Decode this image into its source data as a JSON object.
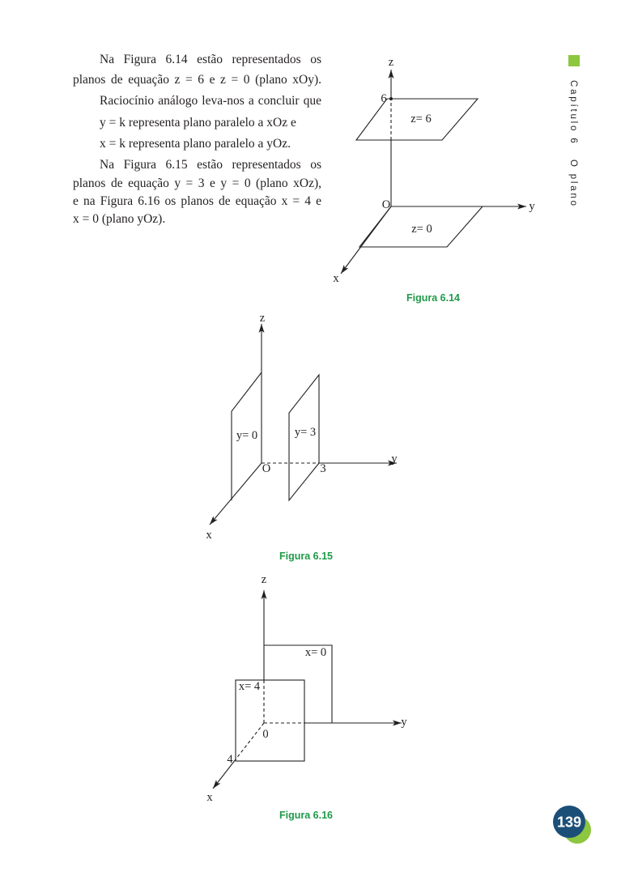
{
  "body": {
    "lines": [
      "Na Figura 6.14 estão representados os",
      "planos de equação z = 6 e z = 0 (plano xOy).",
      "Raciocínio análogo leva-nos a concluir que",
      "y = k representa plano paralelo a xOz e",
      "x = k representa plano paralelo a yOz.",
      "Na Figura 6.15 estão representados os",
      "planos de equação y = 3 e y = 0 (plano xOz),",
      "e na Figura 6.16 os planos de equação x = 4 e",
      "x = 0 (plano yOz)."
    ]
  },
  "side_tab": {
    "chapter": "Capítulo 6",
    "title": "O plano"
  },
  "figures": [
    {
      "caption": "Figura 6.14",
      "labels": {
        "z": "z",
        "z_tick": "6",
        "plane_top": "z= 6",
        "origin": "O",
        "y": "y",
        "plane_bottom": "z= 0",
        "x": "x"
      }
    },
    {
      "caption": "Figura 6.15",
      "labels": {
        "z": "z",
        "plane_left": "y= 0",
        "plane_right": "y= 3",
        "origin": "O",
        "y_tick": "3",
        "y": "y",
        "x": "x"
      }
    },
    {
      "caption": "Figura 6.16",
      "labels": {
        "z": "z",
        "plane_back": "x= 0",
        "plane_front": "x= 4",
        "origin": "0",
        "x_tick": "4",
        "y": "y",
        "x": "x"
      }
    }
  ],
  "page_number": "139",
  "colors": {
    "text": "#231f20",
    "caption_green": "#1f9a48",
    "accent_green": "#8dc63f",
    "badge_blue": "#1c4f78"
  }
}
